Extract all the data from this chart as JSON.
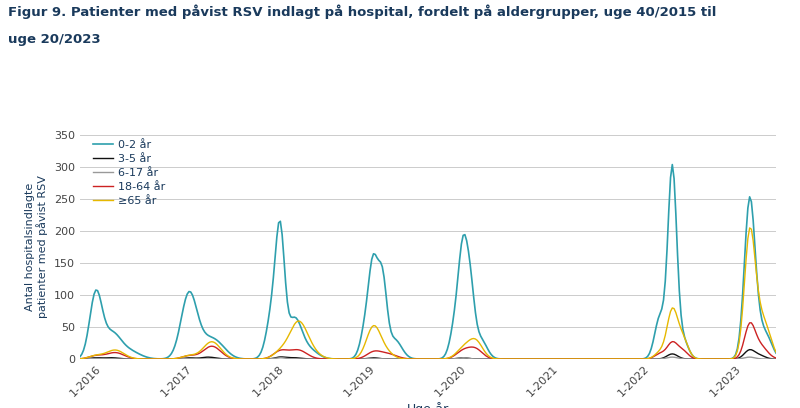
{
  "title_line1": "Figur 9. Patienter med påvist RSV indlagt på hospital, fordelt på aldergrupper, uge 40/2015 til",
  "title_line2": "uge 20/2023",
  "xlabel": "Uge-år",
  "ylabel": "Antal hospitalsindlagte\npatienter med påvist RSV",
  "ylim": [
    0,
    350
  ],
  "yticks": [
    0,
    50,
    100,
    150,
    200,
    250,
    300,
    350
  ],
  "colors": {
    "0-2 år": "#2E9FAD",
    "3-5 år": "#111111",
    "6-17 år": "#999999",
    "18-64 år": "#CC2222",
    "≥65 år": "#E6B800"
  },
  "legend_labels": [
    "0-2 år",
    "3-5 år",
    "6-17 år",
    "18-64 år",
    "≥65 år"
  ],
  "xtick_labels": [
    "1-2016",
    "1-2017",
    "1-2018",
    "1-2019",
    "1-2020",
    "1-2021",
    "1-2022",
    "1-2023"
  ],
  "background_color": "#ffffff",
  "grid_color": "#cccccc",
  "title_color": "#1a3a5c",
  "axis_label_color": "#1a3a5c",
  "tick_label_color": "#444444"
}
